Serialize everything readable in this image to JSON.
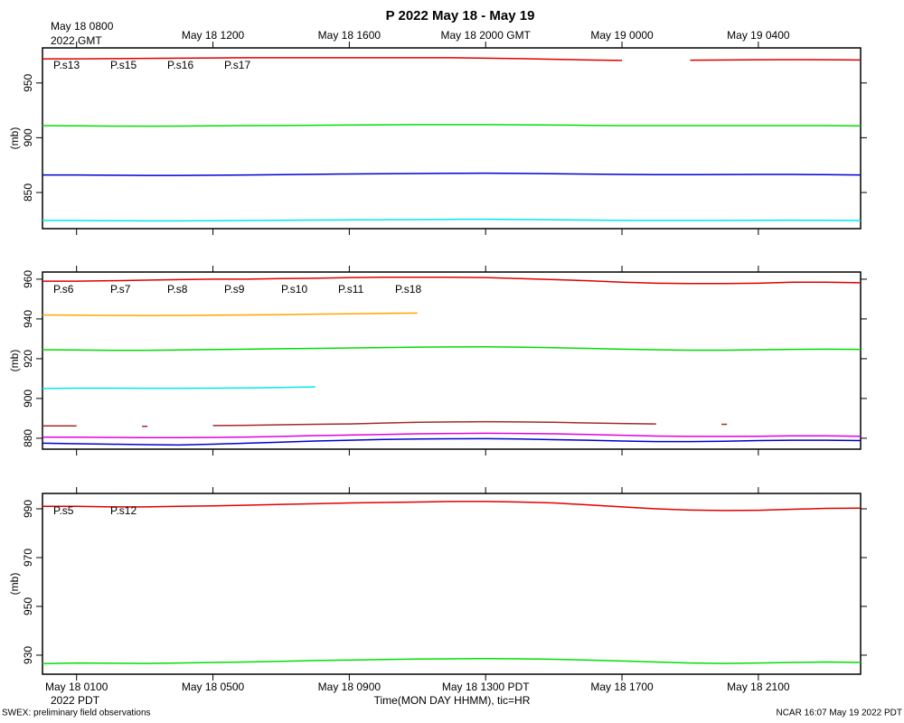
{
  "title": "P 2022 May 18 - May 19",
  "footer_left": "SWEX: preliminary field observations",
  "footer_right": "NCAR 16:07 May 19 2022 PDT",
  "chart_data": [
    {
      "type": "line",
      "ylabel": "(mb)",
      "x": [
        "May 18 0000",
        "May 18 0100",
        "May 18 0200",
        "May 18 0300",
        "May 18 0400",
        "May 18 0500",
        "May 18 0600",
        "May 18 0700",
        "May 18 0800",
        "May 18 0900",
        "May 18 1000",
        "May 18 1100",
        "May 18 1200",
        "May 18 1300",
        "May 18 1400",
        "May 18 1500",
        "May 18 1600",
        "May 18 1700",
        "May 18 1800",
        "May 18 1900",
        "May 18 2000",
        "May 18 2100",
        "May 18 2200",
        "May 18 2300",
        "May 19 0000"
      ],
      "xlim": [
        "May 18 0000",
        "May 19 0000"
      ],
      "x2ticks": [
        {
          "value": "May 18 0100",
          "label": "May 18 0800"
        },
        {
          "value": "May 18 0500",
          "label": "May 18 1200"
        },
        {
          "value": "May 18 0900",
          "label": "May 18 1600"
        },
        {
          "value": "May 18 1300",
          "label": "May 18 2000 GMT"
        },
        {
          "value": "May 18 1700",
          "label": "May 19 0000"
        },
        {
          "value": "May 18 2100",
          "label": "May 19 0400"
        }
      ],
      "x2_sublabel": "2022 GMT",
      "ylim": [
        817,
        982
      ],
      "yticks": [
        850,
        900,
        950
      ],
      "series": [
        {
          "name": "P.s13",
          "color": "#e00000",
          "values": [
            972,
            972,
            972.2,
            972.4,
            972.6,
            972.8,
            973,
            973,
            973,
            973,
            973,
            973,
            973,
            972.6,
            972.2,
            971.6,
            971,
            970.6,
            null,
            970.8,
            971,
            971.2,
            971.3,
            971.2,
            971
          ]
        },
        {
          "name": "P.s15",
          "color": "#00e000",
          "values": [
            911,
            910.8,
            910.6,
            910.5,
            910.6,
            910.8,
            911,
            911.2,
            911.4,
            911.6,
            911.8,
            912,
            912,
            912,
            911.8,
            911.6,
            911.3,
            911,
            911,
            911,
            911,
            911,
            911.1,
            911,
            910.8
          ]
        },
        {
          "name": "P.s16",
          "color": "#0000d0",
          "values": [
            866,
            866,
            865.8,
            865.6,
            865.6,
            865.8,
            866,
            866.3,
            866.6,
            866.9,
            867.1,
            867.3,
            867.5,
            867.6,
            867.4,
            867.1,
            866.8,
            866.5,
            866.3,
            866.3,
            866.4,
            866.5,
            866.5,
            866.3,
            866
          ]
        },
        {
          "name": "P.s17",
          "color": "#00e8e8",
          "values": [
            824.5,
            824.4,
            824.2,
            824.1,
            824.1,
            824.2,
            824.4,
            824.6,
            824.8,
            825,
            825.1,
            825.3,
            825.5,
            825.6,
            825.4,
            825.1,
            824.8,
            824.5,
            824.4,
            824.4,
            824.5,
            824.6,
            824.7,
            824.6,
            824.4
          ]
        }
      ]
    },
    {
      "type": "line",
      "ylabel": "(mb)",
      "x": [
        "May 18 0000",
        "May 18 0100",
        "May 18 0200",
        "May 18 0300",
        "May 18 0400",
        "May 18 0500",
        "May 18 0600",
        "May 18 0700",
        "May 18 0800",
        "May 18 0900",
        "May 18 1000",
        "May 18 1100",
        "May 18 1200",
        "May 18 1300",
        "May 18 1400",
        "May 18 1500",
        "May 18 1600",
        "May 18 1700",
        "May 18 1800",
        "May 18 1900",
        "May 18 2000",
        "May 18 2100",
        "May 18 2200",
        "May 18 2300",
        "May 19 0000"
      ],
      "xlim": [
        "May 18 0000",
        "May 19 0000"
      ],
      "ylim": [
        874.5,
        963.6
      ],
      "yticks": [
        880,
        900,
        920,
        940,
        960
      ],
      "series": [
        {
          "name": "P.s6",
          "color": "#e00000",
          "values": [
            959,
            959,
            959.2,
            959.5,
            959.8,
            960,
            960,
            960.3,
            960.5,
            960.8,
            961,
            961,
            961,
            960.8,
            960.3,
            959.8,
            959.2,
            958.5,
            958,
            957.8,
            957.8,
            958,
            958.5,
            958.5,
            958.2
          ]
        },
        {
          "name": "P.s7",
          "color": "#00e000",
          "values": [
            924.5,
            924.4,
            924.2,
            924.2,
            924.4,
            924.6,
            924.8,
            925,
            925.2,
            925.4,
            925.6,
            925.8,
            925.9,
            926,
            925.8,
            925.5,
            925.2,
            924.8,
            924.5,
            924.3,
            924.3,
            924.5,
            924.7,
            924.8,
            924.7
          ]
        },
        {
          "name": "P.s8",
          "color": "#0000d0",
          "values": [
            877.5,
            877.2,
            877,
            876.8,
            876.6,
            877,
            877.5,
            878,
            878.6,
            879,
            879.4,
            879.6,
            879.7,
            879.8,
            879.6,
            879.3,
            879,
            878.6,
            878.3,
            878.3,
            878.5,
            878.8,
            879,
            879,
            878.8
          ]
        },
        {
          "name": "P.s9",
          "color": "#00e8e8",
          "values": [
            905,
            905.2,
            905.2,
            905.1,
            905.1,
            905.2,
            905.3,
            905.5,
            905.8,
            null,
            null,
            null,
            null,
            null,
            null,
            null,
            null,
            null,
            null,
            null,
            null,
            null,
            null,
            null,
            null
          ]
        },
        {
          "name": "P.s10",
          "color": "#e000e0",
          "values": [
            880.5,
            880.5,
            880.4,
            880.3,
            880.3,
            880.4,
            880.6,
            880.9,
            881.3,
            881.6,
            881.9,
            882.2,
            882.4,
            882.5,
            882.4,
            882.2,
            881.9,
            881.5,
            881.1,
            880.9,
            880.9,
            881,
            881.2,
            881.2,
            881
          ]
        },
        {
          "name": "P.s11",
          "color": "#a52a2a",
          "values": [
            886.2,
            886.2,
            null,
            886,
            null,
            886.4,
            886.5,
            886.8,
            887,
            887.2,
            887.6,
            888,
            888.2,
            888.3,
            888.2,
            888,
            887.7,
            887.4,
            887.2,
            null,
            887,
            null,
            null,
            null,
            null
          ]
        },
        {
          "name": "P.s18",
          "color": "#ffa500",
          "values": [
            942,
            941.9,
            941.8,
            941.7,
            941.8,
            941.9,
            942,
            942.2,
            942.4,
            942.6,
            942.8,
            943,
            null,
            null,
            null,
            null,
            null,
            null,
            null,
            null,
            null,
            null,
            null,
            null,
            null
          ]
        }
      ]
    },
    {
      "type": "line",
      "ylabel": "(mb)",
      "x": [
        "May 18 0000",
        "May 18 0100",
        "May 18 0200",
        "May 18 0300",
        "May 18 0400",
        "May 18 0500",
        "May 18 0600",
        "May 18 0700",
        "May 18 0800",
        "May 18 0900",
        "May 18 1000",
        "May 18 1100",
        "May 18 1200",
        "May 18 1300",
        "May 18 1400",
        "May 18 1500",
        "May 18 1600",
        "May 18 1700",
        "May 18 1800",
        "May 18 1900",
        "May 18 2000",
        "May 18 2100",
        "May 18 2200",
        "May 18 2300",
        "May 19 0000"
      ],
      "xlim": [
        "May 18 0000",
        "May 19 0000"
      ],
      "xticks": [
        "May 18 0100",
        "May 18 0500",
        "May 18 0900",
        {
          "value": "May 18 1300",
          "label": "May 18 1300 PDT"
        },
        "May 18 1700",
        "May 18 2100"
      ],
      "x_sublabel": "2022 PDT",
      "xlabel": "Time(MON DAY HHMM), tic=HR",
      "ylim": [
        922.2,
        996.3
      ],
      "yticks": [
        930,
        950,
        970,
        990
      ],
      "series": [
        {
          "name": "P.s5",
          "color": "#e00000",
          "values": [
            991,
            991,
            990.8,
            990.8,
            991,
            991.2,
            991.5,
            991.8,
            992.1,
            992.4,
            992.6,
            992.8,
            993,
            993,
            992.8,
            992.4,
            991.6,
            990.8,
            990,
            989.5,
            989.3,
            989.4,
            989.8,
            990.2,
            990.3
          ]
        },
        {
          "name": "P.s12",
          "color": "#00e000",
          "values": [
            926.5,
            926.8,
            926.7,
            926.6,
            926.8,
            927,
            927.2,
            927.5,
            927.8,
            928,
            928.2,
            928.4,
            928.5,
            928.6,
            928.5,
            928.3,
            928,
            927.6,
            927.2,
            926.8,
            926.6,
            926.8,
            927,
            927.2,
            927
          ]
        }
      ]
    }
  ]
}
